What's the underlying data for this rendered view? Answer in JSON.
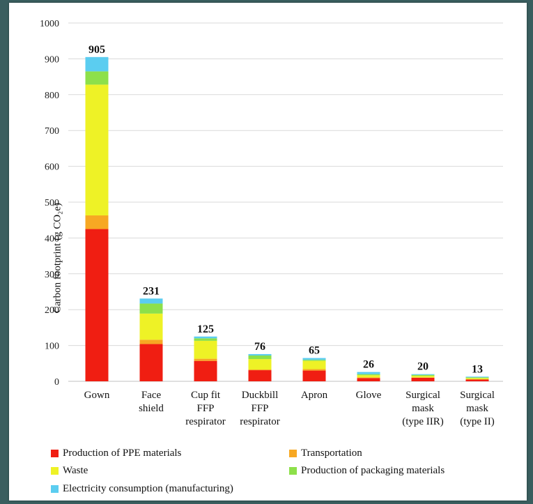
{
  "chart_data": {
    "type": "bar",
    "stacked": true,
    "categories": [
      [
        "Gown"
      ],
      [
        "Face",
        "shield"
      ],
      [
        "Cup fit",
        "FFP",
        "respirator"
      ],
      [
        "Duckbill",
        "FFP",
        "respirator"
      ],
      [
        "Apron"
      ],
      [
        "Glove"
      ],
      [
        "Surgical",
        "mask",
        "(type IIR)"
      ],
      [
        "Surgical",
        "mask",
        "(type II)"
      ]
    ],
    "totals": [
      905,
      231,
      125,
      76,
      65,
      26,
      20,
      13
    ],
    "series": [
      {
        "name": "Production of PPE materials",
        "color": "#f01e12",
        "values": [
          425,
          104,
          57,
          31,
          30,
          9,
          10,
          5
        ]
      },
      {
        "name": "Transportation",
        "color": "#f7a823",
        "values": [
          38,
          12,
          6,
          2,
          4,
          2,
          1,
          1
        ]
      },
      {
        "name": "Waste",
        "color": "#eef226",
        "values": [
          365,
          73,
          50,
          29,
          23,
          6,
          4,
          3
        ]
      },
      {
        "name": "Production of packaging materials",
        "color": "#8de04a",
        "values": [
          37,
          28,
          7,
          10,
          3,
          3,
          3,
          2
        ]
      },
      {
        "name": "Electricity consumption (manufacturing)",
        "color": "#5bcdf0",
        "values": [
          40,
          14,
          5,
          4,
          5,
          6,
          2,
          2
        ]
      }
    ],
    "ylabel": "Carbon footprint (g CO₂e)",
    "ylim": [
      0,
      1000
    ],
    "yticks": [
      0,
      100,
      200,
      300,
      400,
      500,
      600,
      700,
      800,
      900,
      1000
    ],
    "grid": true,
    "legend": "bottom"
  }
}
